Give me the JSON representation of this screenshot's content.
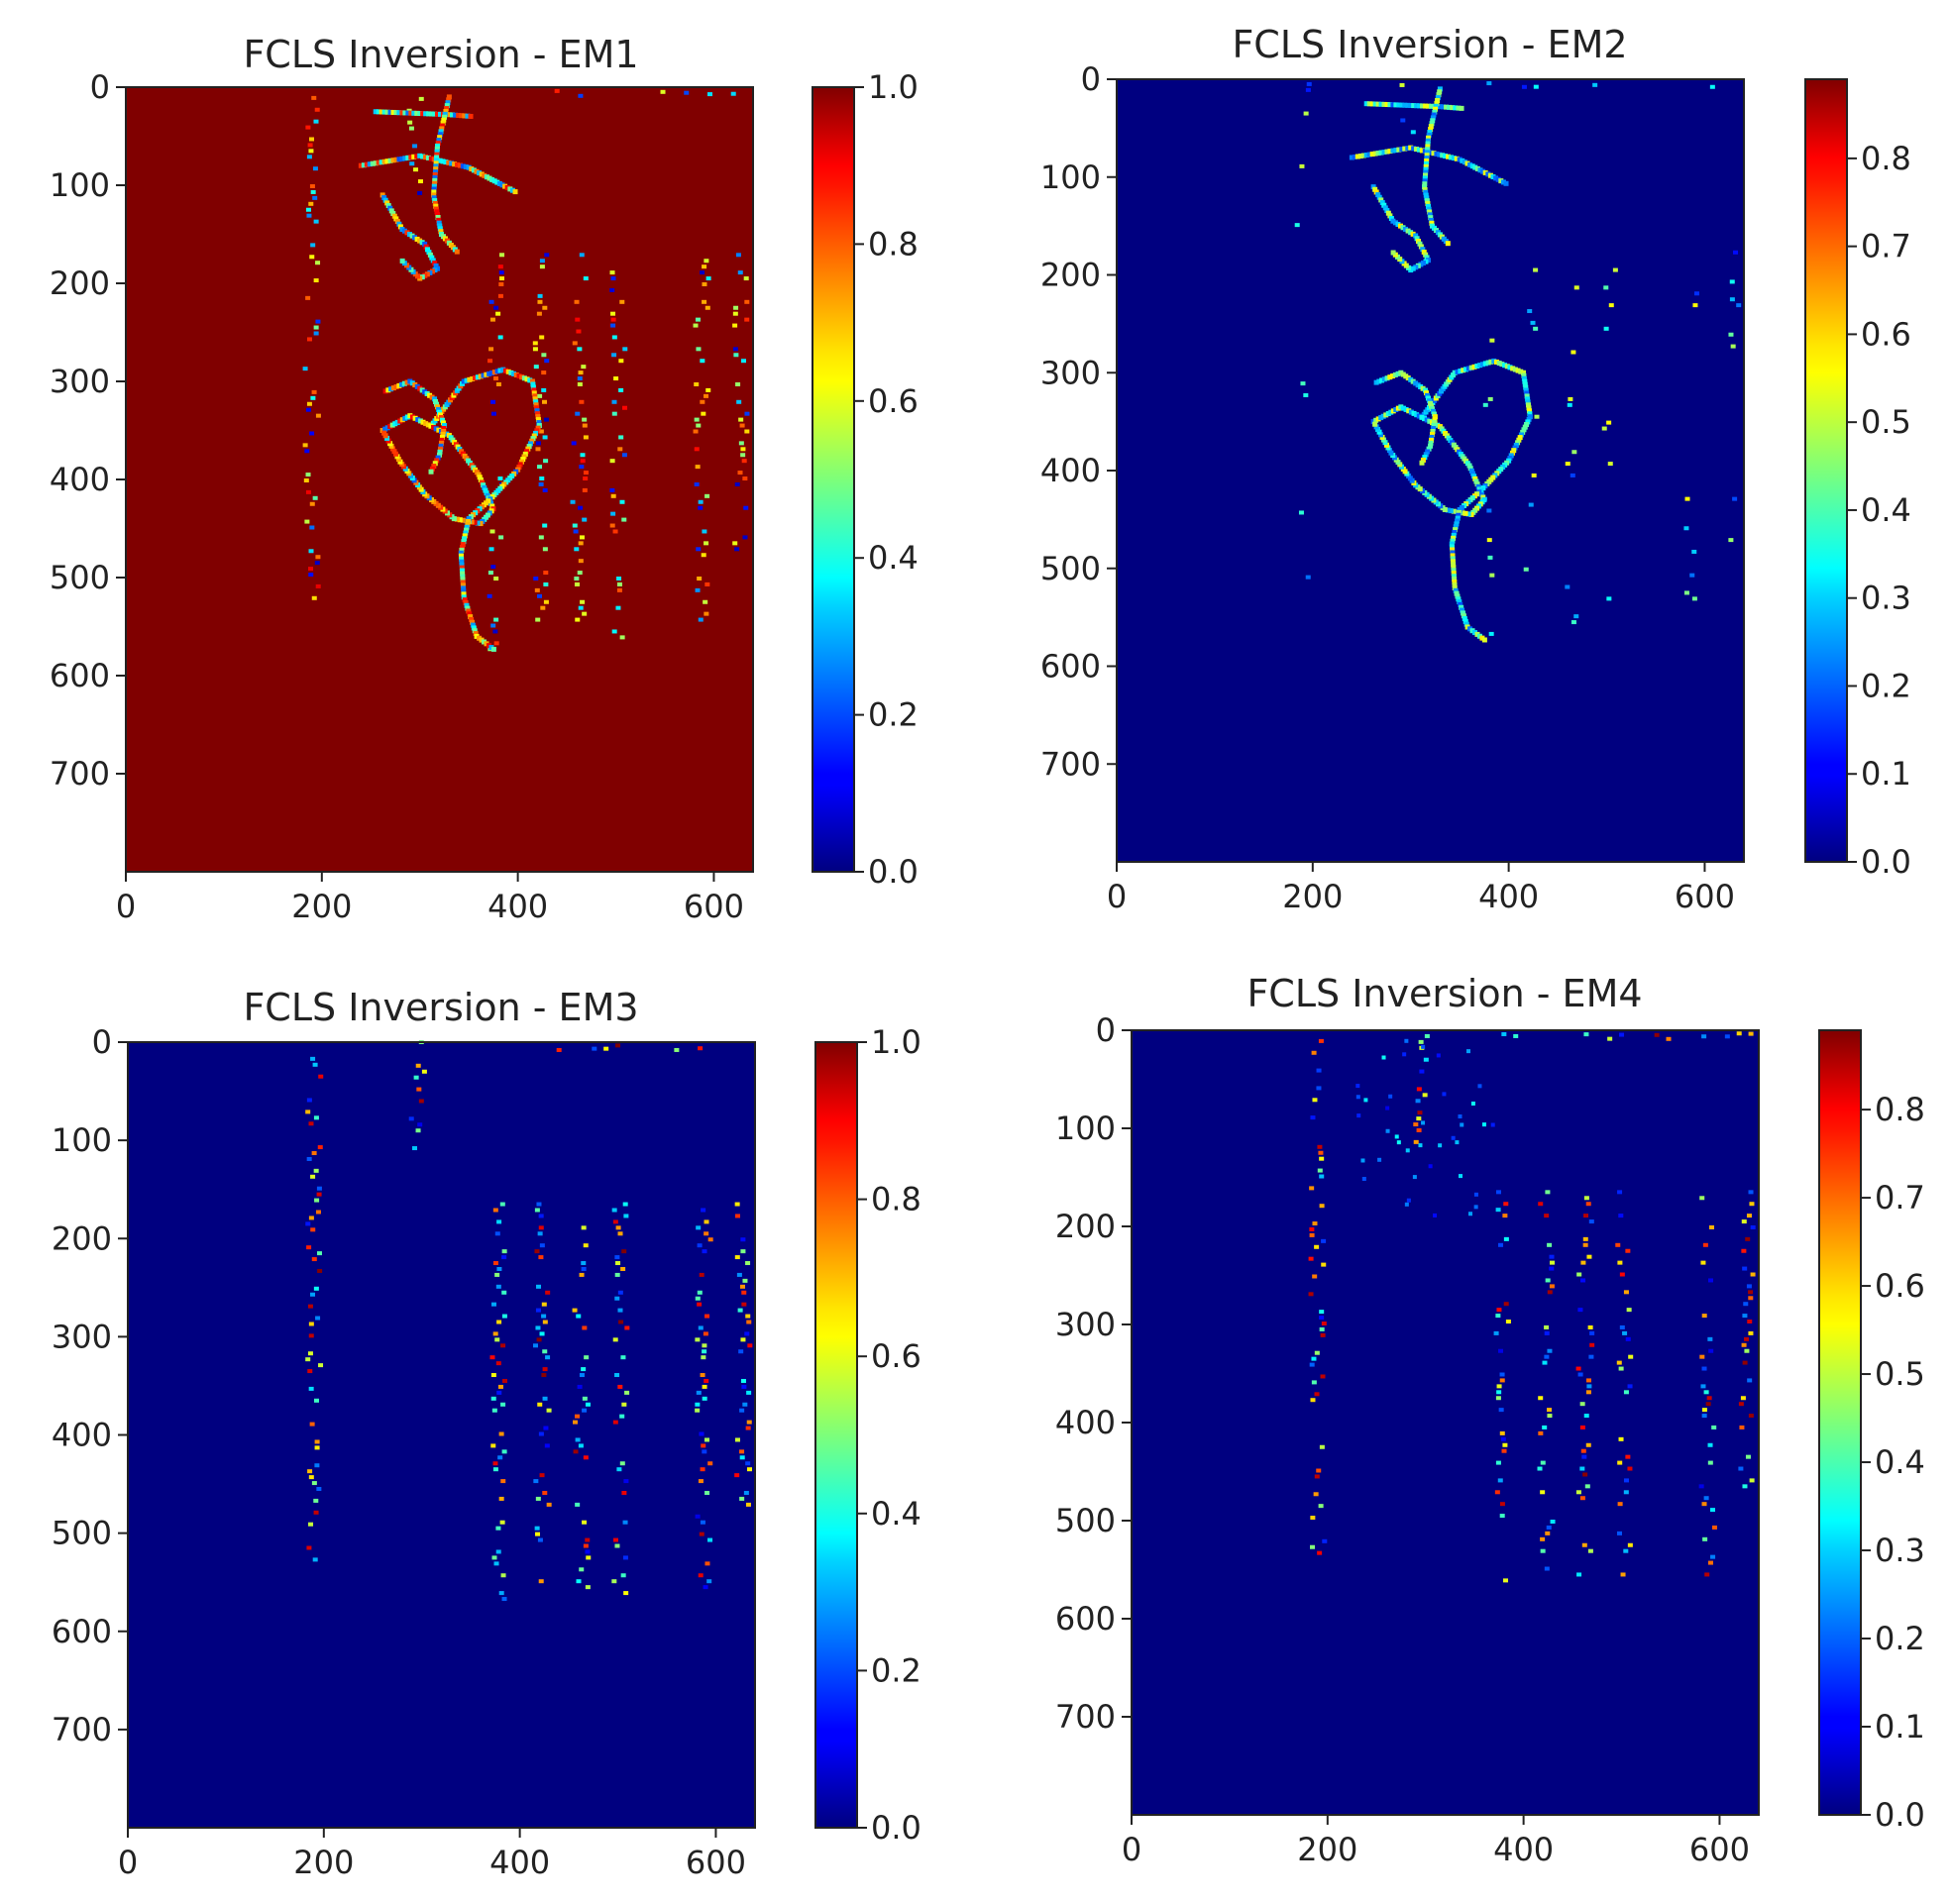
{
  "chart_data": [
    {
      "type": "heatmap",
      "title": "FCLS Inversion - EM1",
      "colormap": "jet",
      "background_value": 1.0,
      "xlim": [
        0,
        640
      ],
      "ylim": [
        800,
        0
      ],
      "x_ticks": [
        0,
        200,
        400,
        600
      ],
      "x_tick_labels": [
        "0",
        "200",
        "400",
        "600"
      ],
      "y_ticks": [
        0,
        100,
        200,
        300,
        400,
        500,
        600,
        700
      ],
      "y_tick_labels": [
        "0",
        "100",
        "200",
        "300",
        "400",
        "500",
        "600",
        "700"
      ],
      "colorbar_range": [
        0.0,
        1.0
      ],
      "colorbar_ticks": [
        0.0,
        0.2,
        0.4,
        0.6,
        0.8,
        1.0
      ],
      "colorbar_tick_labels": [
        "0.0",
        "0.2",
        "0.4",
        "0.6",
        "0.8",
        "1.0"
      ]
    },
    {
      "type": "heatmap",
      "title": "FCLS Inversion - EM2",
      "colormap": "jet",
      "background_value": 0.0,
      "xlim": [
        0,
        640
      ],
      "ylim": [
        800,
        0
      ],
      "x_ticks": [
        0,
        200,
        400,
        600
      ],
      "x_tick_labels": [
        "0",
        "200",
        "400",
        "600"
      ],
      "y_ticks": [
        0,
        100,
        200,
        300,
        400,
        500,
        600,
        700
      ],
      "y_tick_labels": [
        "0",
        "100",
        "200",
        "300",
        "400",
        "500",
        "600",
        "700"
      ],
      "colorbar_range": [
        0.0,
        0.89
      ],
      "colorbar_ticks": [
        0.0,
        0.1,
        0.2,
        0.3,
        0.4,
        0.5,
        0.6,
        0.7,
        0.8
      ],
      "colorbar_tick_labels": [
        "0.0",
        "0.1",
        "0.2",
        "0.3",
        "0.4",
        "0.5",
        "0.6",
        "0.7",
        "0.8"
      ]
    },
    {
      "type": "heatmap",
      "title": "FCLS Inversion - EM3",
      "colormap": "jet",
      "background_value": 0.0,
      "xlim": [
        0,
        640
      ],
      "ylim": [
        800,
        0
      ],
      "x_ticks": [
        0,
        200,
        400,
        600
      ],
      "x_tick_labels": [
        "0",
        "200",
        "400",
        "600"
      ],
      "y_ticks": [
        0,
        100,
        200,
        300,
        400,
        500,
        600,
        700
      ],
      "y_tick_labels": [
        "0",
        "100",
        "200",
        "300",
        "400",
        "500",
        "600",
        "700"
      ],
      "colorbar_range": [
        0.0,
        1.0
      ],
      "colorbar_ticks": [
        0.0,
        0.2,
        0.4,
        0.6,
        0.8,
        1.0
      ],
      "colorbar_tick_labels": [
        "0.0",
        "0.2",
        "0.4",
        "0.6",
        "0.8",
        "1.0"
      ]
    },
    {
      "type": "heatmap",
      "title": "FCLS Inversion - EM4",
      "colormap": "jet",
      "background_value": 0.0,
      "xlim": [
        0,
        640
      ],
      "ylim": [
        800,
        0
      ],
      "x_ticks": [
        0,
        200,
        400,
        600
      ],
      "x_tick_labels": [
        "0",
        "200",
        "400",
        "600"
      ],
      "y_ticks": [
        0,
        100,
        200,
        300,
        400,
        500,
        600,
        700
      ],
      "y_tick_labels": [
        "0",
        "100",
        "200",
        "300",
        "400",
        "500",
        "600",
        "700"
      ],
      "colorbar_range": [
        0.0,
        0.89
      ],
      "colorbar_ticks": [
        0.0,
        0.1,
        0.2,
        0.3,
        0.4,
        0.5,
        0.6,
        0.7,
        0.8
      ],
      "colorbar_tick_labels": [
        "0.0",
        "0.1",
        "0.2",
        "0.3",
        "0.4",
        "0.5",
        "0.6",
        "0.7",
        "0.8"
      ]
    }
  ],
  "features": [
    {
      "type": "column",
      "x": 190,
      "y0": 5,
      "y1": 545
    },
    {
      "type": "column",
      "x": 378,
      "y0": 165,
      "y1": 575
    },
    {
      "type": "column",
      "x": 423,
      "y0": 165,
      "y1": 555
    },
    {
      "type": "column",
      "x": 463,
      "y0": 165,
      "y1": 560
    },
    {
      "type": "column",
      "x": 503,
      "y0": 165,
      "y1": 565
    },
    {
      "type": "column",
      "x": 588,
      "y0": 165,
      "y1": 560
    },
    {
      "type": "column",
      "x": 628,
      "y0": 165,
      "y1": 475
    },
    {
      "type": "column",
      "x": 296,
      "y0": 0,
      "y1": 120
    },
    {
      "type": "row",
      "y": 6,
      "x0": 380,
      "x1": 640
    },
    {
      "type": "stroke",
      "points": [
        [
          255,
          25
        ],
        [
          330,
          28
        ],
        [
          355,
          30
        ]
      ]
    },
    {
      "type": "stroke",
      "points": [
        [
          240,
          80
        ],
        [
          300,
          70
        ],
        [
          350,
          82
        ],
        [
          400,
          108
        ]
      ]
    },
    {
      "type": "stroke",
      "points": [
        [
          262,
          110
        ],
        [
          282,
          145
        ],
        [
          305,
          160
        ],
        [
          318,
          185
        ],
        [
          300,
          195
        ],
        [
          280,
          175
        ]
      ]
    },
    {
      "type": "stroke",
      "points": [
        [
          330,
          10
        ],
        [
          318,
          60
        ],
        [
          314,
          110
        ],
        [
          322,
          150
        ],
        [
          340,
          170
        ]
      ]
    },
    {
      "type": "stroke",
      "points": [
        [
          312,
          345
        ],
        [
          345,
          300
        ],
        [
          385,
          288
        ],
        [
          415,
          300
        ],
        [
          422,
          345
        ],
        [
          400,
          390
        ],
        [
          372,
          420
        ]
      ]
    },
    {
      "type": "stroke",
      "points": [
        [
          262,
          350
        ],
        [
          290,
          335
        ],
        [
          330,
          355
        ],
        [
          360,
          395
        ],
        [
          375,
          430
        ],
        [
          362,
          445
        ],
        [
          335,
          440
        ],
        [
          305,
          415
        ],
        [
          280,
          382
        ],
        [
          262,
          350
        ]
      ]
    },
    {
      "type": "stroke",
      "points": [
        [
          265,
          310
        ],
        [
          290,
          300
        ],
        [
          315,
          318
        ],
        [
          325,
          345
        ],
        [
          320,
          375
        ],
        [
          310,
          395
        ]
      ]
    },
    {
      "type": "stroke",
      "points": [
        [
          372,
          420
        ],
        [
          350,
          440
        ],
        [
          342,
          475
        ],
        [
          345,
          520
        ],
        [
          358,
          560
        ],
        [
          378,
          575
        ]
      ]
    }
  ]
}
